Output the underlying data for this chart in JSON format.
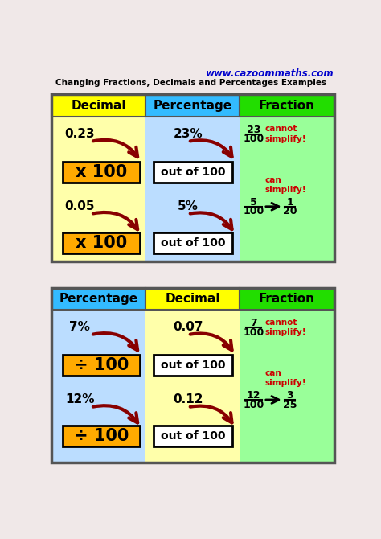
{
  "bg_color": "#f0e8e8",
  "url_text": "www.cazoommaths.com",
  "url_color": "#0000cc",
  "subtitle": "Changing Fractions, Decimals and Percentages Examples",
  "colors": {
    "yellow_hdr": "#ffff00",
    "blue_hdr": "#33bbff",
    "green_hdr": "#22dd00",
    "yellow_bg": "#ffffaa",
    "blue_bg": "#bbddff",
    "green_bg": "#99ff99",
    "orange": "#ffaa00",
    "white": "#ffffff",
    "black": "#000000",
    "dark_red": "#880000",
    "red": "#cc0000",
    "border": "#555555"
  },
  "panel1": {
    "headers": [
      "Decimal",
      "Percentage",
      "Fraction"
    ],
    "header_colors": [
      "#ffff00",
      "#33bbff",
      "#22dd00"
    ],
    "bg_colors": [
      "#ffffaa",
      "#bbddff",
      "#99ff99"
    ]
  },
  "panel2": {
    "headers": [
      "Percentage",
      "Decimal",
      "Fraction"
    ],
    "header_colors": [
      "#33bbff",
      "#ffff00",
      "#22dd00"
    ],
    "bg_colors": [
      "#bbddff",
      "#ffffaa",
      "#99ff99"
    ]
  }
}
